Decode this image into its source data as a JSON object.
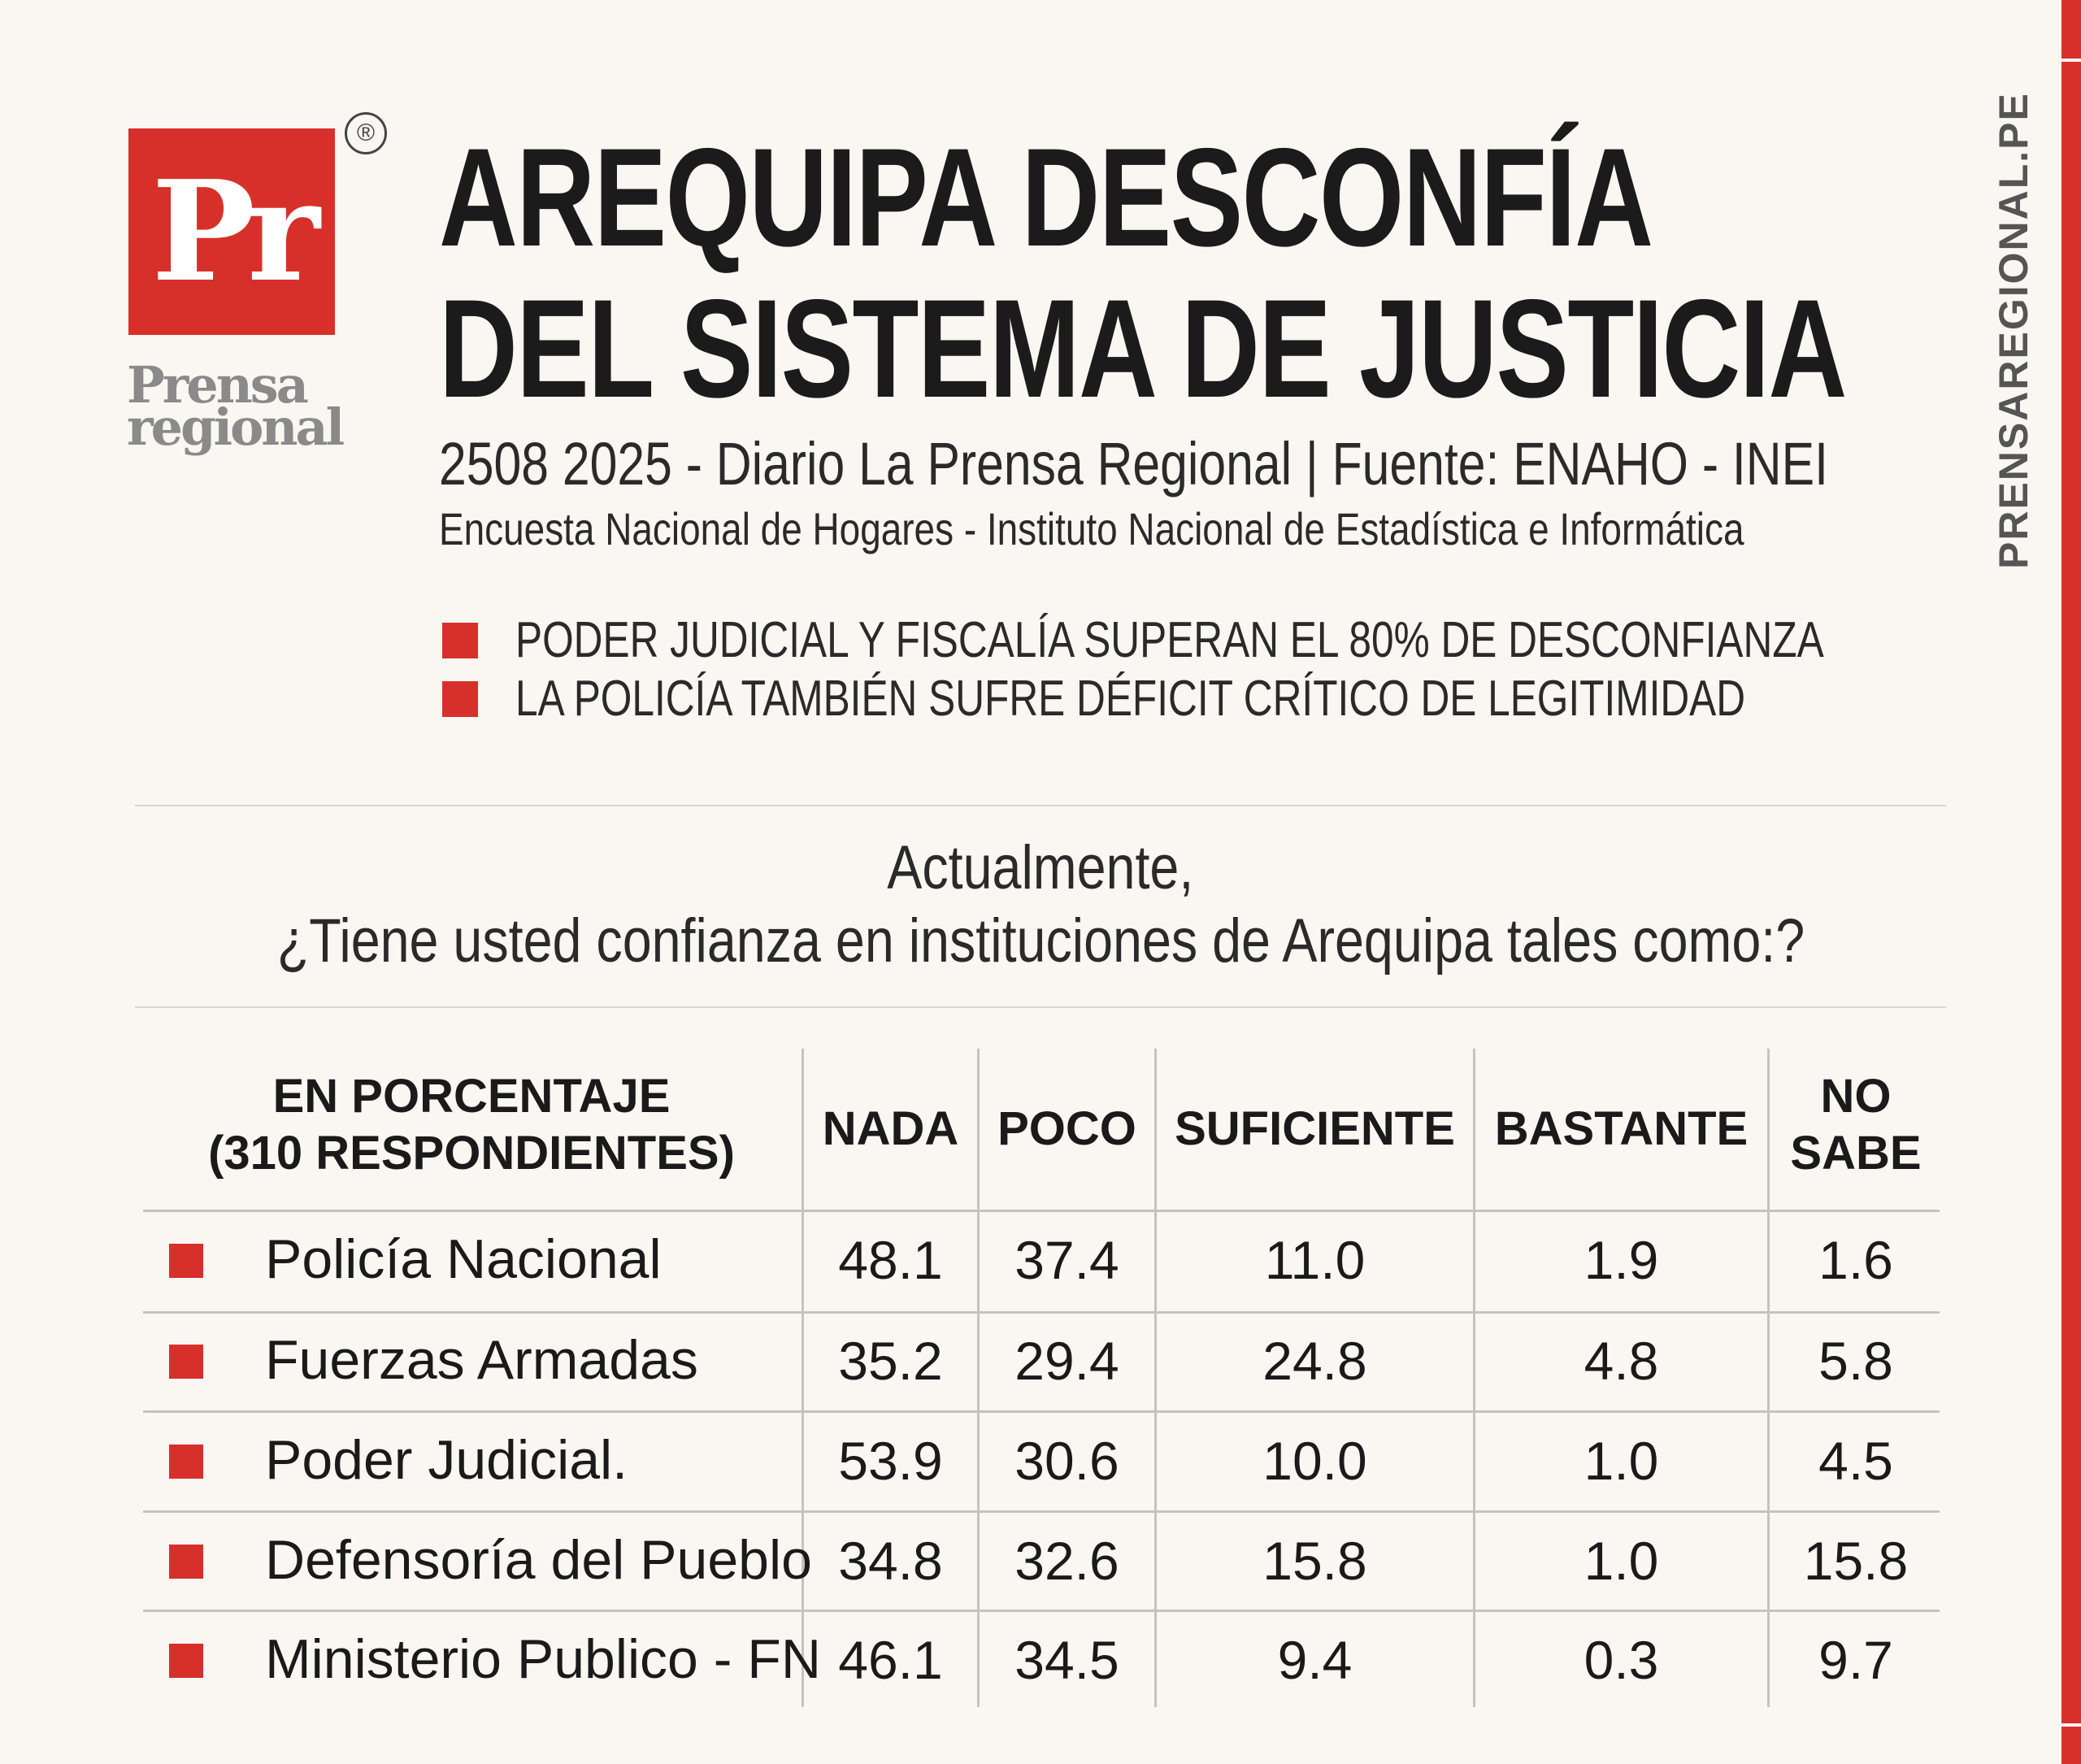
{
  "header": {
    "logo_mark": "Pr",
    "registered": "®",
    "brand_line1": "Prensa",
    "brand_line2": "regional",
    "title_line1": "AREQUIPA DESCONFÍA",
    "title_line2": "DEL SISTEMA DE JUSTICIA",
    "meta": "2508 2025 - Diario La Prensa Regional | Fuente: ENAHO - INEI",
    "meta2": "Encuesta Nacional de Hogares - Instituto Nacional de Estadística e Informática",
    "bullets": [
      "PODER JUDICIAL Y FISCALÍA SUPERAN EL 80% DE DESCONFIANZA",
      "LA POLICÍA TAMBIÉN SUFRE DÉFICIT CRÍTICO DE LEGITIMIDAD"
    ],
    "site": "PRENSAREGIONAL.PE"
  },
  "question": {
    "line1": "Actualmente,",
    "line2": "¿Tiene usted confianza en instituciones de Arequipa tales como:?"
  },
  "colors": {
    "accent": "#d7302b",
    "text": "#1a1a1a",
    "background": "#faf6f2",
    "grey": "#8a8a8a"
  },
  "icons": {
    "bullet": "red-square-icon"
  },
  "chart_data": {
    "type": "table",
    "corner_header_line1": "EN PORCENTAJE",
    "corner_header_line2": "(310 RESPONDIENTES)",
    "columns": [
      {
        "line1": "NADA",
        "line2": ""
      },
      {
        "line1": "POCO",
        "line2": ""
      },
      {
        "line1": "SUFICIENTE",
        "line2": ""
      },
      {
        "line1": "BASTANTE",
        "line2": ""
      },
      {
        "line1": "NO",
        "line2": "SABE"
      }
    ],
    "rows": [
      {
        "label": "Policía Nacional",
        "values": [
          "48.1",
          "37.4",
          "11.0",
          "1.9",
          "1.6"
        ]
      },
      {
        "label": "Fuerzas Armadas",
        "values": [
          "35.2",
          "29.4",
          "24.8",
          "4.8",
          "5.8"
        ]
      },
      {
        "label": "Poder Judicial.",
        "values": [
          "53.9",
          "30.6",
          "10.0",
          "1.0",
          "4.5"
        ]
      },
      {
        "label": "Defensoría del Pueblo",
        "values": [
          "34.8",
          "32.6",
          "15.8",
          "1.0",
          "15.8"
        ]
      },
      {
        "label": "Ministerio Publico - FN",
        "values": [
          "46.1",
          "34.5",
          "9.4",
          "0.3",
          "9.7"
        ]
      }
    ]
  }
}
